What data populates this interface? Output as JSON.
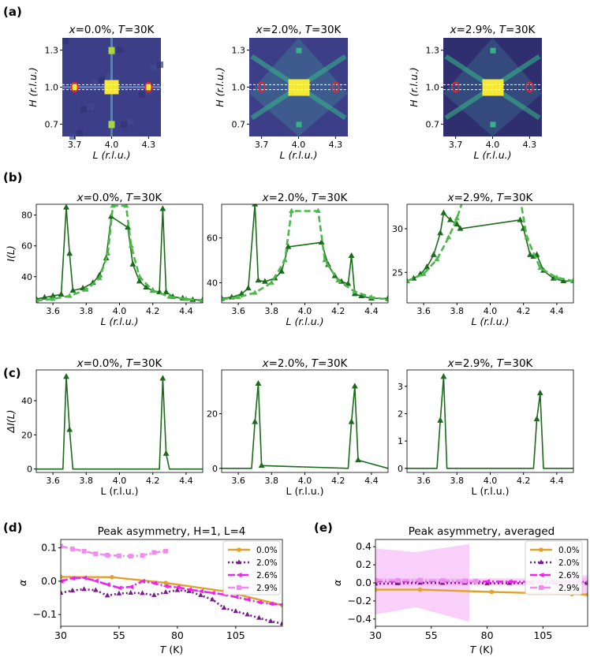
{
  "panel_labels": [
    "(a)",
    "(b)",
    "(c)",
    "(d)",
    "(e)"
  ],
  "chart_data": [
    {
      "id": "a",
      "type": "heatmap",
      "titles": [
        "x=0.0%, T=30K",
        "x=2.0%, T=30K",
        "x=2.9%, T=30K"
      ],
      "xlabel": "L (r.l.u.)",
      "ylabel": "H (r.l.u.)",
      "xticks": [
        "3.7",
        "4.0",
        "4.3"
      ],
      "yticks": [
        "1.3",
        "1.0",
        "0.7"
      ],
      "xlim": [
        3.6,
        4.4
      ],
      "ylim": [
        0.6,
        1.4
      ],
      "colors": {
        "bg": "#3c3f88",
        "bg_dark": "#2f2e6e",
        "hot": "#f5e836",
        "mid": "#36b18a",
        "marker": "#ff2020"
      }
    },
    {
      "id": "b",
      "type": "line",
      "titles": [
        "x=0.0%, T=30K",
        "x=2.0%, T=30K",
        "x=2.9%, T=30K"
      ],
      "xlabel": "L (r.l.u.)",
      "ylabel": "I(L)",
      "xticks": [
        "3.6",
        "3.8",
        "4.0",
        "4.2",
        "4.4"
      ],
      "yticks": [
        [
          "40",
          "60",
          "80"
        ],
        [
          "40",
          "60"
        ],
        [
          "25",
          "30"
        ]
      ],
      "ylim": [
        [
          23,
          87
        ],
        [
          31,
          75
        ],
        [
          21.5,
          32.8
        ]
      ],
      "xlim": [
        3.5,
        4.5
      ],
      "series": [
        {
          "name": "data",
          "color": "#1a6b1a",
          "x": [
            [
              3.5,
              3.55,
              3.6,
              3.65,
              3.68,
              3.7,
              3.72,
              3.78,
              3.84,
              3.88,
              3.92,
              3.95,
              4.05,
              4.08,
              4.12,
              4.16,
              4.2,
              4.24,
              4.26,
              4.28,
              4.32,
              4.38,
              4.44,
              4.5
            ],
            [
              3.5,
              3.56,
              3.62,
              3.66,
              3.7,
              3.72,
              3.76,
              3.82,
              3.86,
              3.9,
              4.1,
              4.14,
              4.18,
              4.22,
              4.26,
              4.28,
              4.3,
              4.34,
              4.4,
              4.5
            ],
            [
              3.5,
              3.54,
              3.58,
              3.62,
              3.66,
              3.7,
              3.72,
              3.76,
              3.8,
              3.82,
              4.18,
              4.2,
              4.24,
              4.26,
              4.28,
              4.32,
              4.38,
              4.44,
              4.5
            ]
          ],
          "y": [
            [
              25.5,
              26.5,
              27.5,
              28.5,
              85,
              55,
              31,
              32.5,
              36,
              41,
              52,
              79,
              72,
              48,
              37,
              33,
              31,
              30,
              84,
              30,
              27,
              26,
              25,
              25
            ],
            [
              33,
              33.5,
              35,
              37.5,
              75,
              41,
              40.5,
              42,
              45,
              56,
              58,
              48,
              43,
              40.5,
              39.5,
              52,
              35,
              34,
              33,
              33
            ],
            [
              24,
              24.3,
              24.8,
              25.6,
              27,
              29.5,
              31.8,
              31,
              30.5,
              30,
              31,
              30,
              27,
              26.8,
              27,
              25.2,
              24.3,
              24,
              24
            ]
          ]
        },
        {
          "name": "fit",
          "color": "#4cb84c",
          "dashed": true,
          "x": [
            [
              3.5,
              3.6,
              3.7,
              3.8,
              3.88,
              3.93,
              3.96,
              4.04,
              4.07,
              4.12,
              4.2,
              4.3,
              4.4,
              4.5
            ],
            [
              3.5,
              3.6,
              3.7,
              3.8,
              3.88,
              3.92,
              4.08,
              4.12,
              4.2,
              4.3,
              4.4,
              4.5
            ],
            [
              3.5,
              3.6,
              3.68,
              3.75,
              3.8,
              3.84,
              4.18,
              4.22,
              4.3,
              4.4,
              4.5
            ]
          ],
          "y": [
            [
              24.5,
              25.5,
              27.5,
              31.5,
              39,
              55,
              86,
              86,
              60,
              40,
              31,
              27,
              25.5,
              24.5
            ],
            [
              32.5,
              33.5,
              35.5,
              40,
              50,
              72,
              72,
              50,
              41,
              36,
              33.5,
              32.5
            ],
            [
              24,
              24.8,
              26.5,
              29,
              31.2,
              33.5,
              33.5,
              29,
              25.5,
              24.4,
              24
            ]
          ]
        }
      ]
    },
    {
      "id": "c",
      "type": "line",
      "titles": [
        "x=0.0%, T=30K",
        "x=2.0%, T=30K",
        "x=2.9%, T=30K"
      ],
      "xlabel": "L (r.l.u.)",
      "ylabel": "ΔI(L)",
      "xticks": [
        "3.6",
        "3.8",
        "4.0",
        "4.2",
        "4.4"
      ],
      "yticks": [
        [
          "0",
          "20",
          "40"
        ],
        [
          "0",
          "20"
        ],
        [
          "0",
          "1",
          "2",
          "3"
        ]
      ],
      "ylim": [
        [
          -2,
          58
        ],
        [
          -1.5,
          36
        ],
        [
          -0.15,
          3.6
        ]
      ],
      "xlim": [
        3.5,
        4.5
      ],
      "series": [
        {
          "name": "diff",
          "color": "#1a6b1a",
          "x": [
            [
              3.5,
              3.66,
              3.68,
              3.7,
              3.72,
              4.24,
              4.26,
              4.28,
              4.3,
              4.5
            ],
            [
              3.5,
              3.68,
              3.7,
              3.72,
              3.74,
              4.26,
              4.28,
              4.3,
              4.32,
              4.5
            ],
            [
              3.5,
              3.68,
              3.7,
              3.72,
              3.74,
              4.26,
              4.28,
              4.3,
              4.32,
              4.5
            ]
          ],
          "y": [
            [
              0,
              0,
              54,
              23,
              0,
              0,
              53,
              9,
              0,
              0
            ],
            [
              0,
              0,
              17,
              31,
              1,
              0,
              17,
              30,
              3,
              0
            ],
            [
              0,
              0,
              1.75,
              3.35,
              0,
              0,
              1.8,
              2.75,
              0,
              0
            ]
          ],
          "marked": [
            [
              2,
              3,
              6,
              7
            ],
            [
              2,
              3,
              4,
              6,
              7,
              8
            ],
            [
              2,
              3,
              6,
              7
            ]
          ]
        }
      ]
    },
    {
      "id": "d",
      "type": "line",
      "title": "Peak asymmetry, H=1, L=4",
      "xlabel": "T (K)",
      "ylabel": "α",
      "xticks": [
        "30",
        "55",
        "80",
        "105"
      ],
      "yticks": [
        "0.1",
        "0.0",
        "−0.1"
      ],
      "xlim": [
        30,
        125
      ],
      "ylim": [
        -0.135,
        0.125
      ],
      "series": [
        {
          "name": "0.0%",
          "color": "#e1a22c",
          "style": "solid",
          "x": [
            30,
            52,
            75,
            100,
            125
          ],
          "y": [
            0.013,
            0.012,
            -0.005,
            -0.03,
            -0.072
          ]
        },
        {
          "name": "2.0%",
          "color": "#7a1c8c",
          "style": "dotted",
          "x": [
            30,
            35,
            40,
            45,
            50,
            55,
            60,
            65,
            70,
            75,
            80,
            85,
            90,
            95,
            100,
            105,
            110,
            115,
            120,
            125
          ],
          "y": [
            -0.035,
            -0.028,
            -0.024,
            -0.027,
            -0.043,
            -0.037,
            -0.035,
            -0.036,
            -0.042,
            -0.033,
            -0.027,
            -0.03,
            -0.042,
            -0.055,
            -0.08,
            -0.09,
            -0.1,
            -0.11,
            -0.12,
            -0.127
          ]
        },
        {
          "name": "2.6%",
          "color": "#ee22ee",
          "style": "dashdot",
          "x": [
            30,
            35,
            40,
            45,
            50,
            55,
            60,
            65,
            70,
            75,
            80,
            85,
            90,
            95,
            100,
            105,
            110,
            115,
            120,
            125
          ],
          "y": [
            0.0,
            0.009,
            0.01,
            0.001,
            -0.01,
            -0.02,
            -0.017,
            0.0,
            -0.006,
            -0.015,
            -0.018,
            -0.025,
            -0.03,
            -0.035,
            -0.04,
            -0.047,
            -0.055,
            -0.063,
            -0.068,
            -0.07
          ]
        },
        {
          "name": "2.9%",
          "color": "#f08cf0",
          "style": "dashdot",
          "x": [
            30,
            35,
            40,
            45,
            50,
            55,
            60,
            65,
            70,
            75
          ],
          "y": [
            0.105,
            0.097,
            0.09,
            0.082,
            0.078,
            0.076,
            0.075,
            0.077,
            0.086,
            0.09
          ]
        }
      ]
    },
    {
      "id": "e",
      "type": "line",
      "title": "Peak asymmetry, averaged",
      "xlabel": "T (K)",
      "ylabel": "α",
      "xticks": [
        "30",
        "55",
        "80",
        "105"
      ],
      "yticks": [
        "0.4",
        "0.2",
        "0.0",
        "−0.2",
        "−0.4"
      ],
      "xlim": [
        30,
        125
      ],
      "ylim": [
        -0.48,
        0.48
      ],
      "band": {
        "x": [
          30,
          48,
          72
        ],
        "lower": [
          -0.35,
          -0.27,
          -0.43
        ],
        "upper": [
          0.38,
          0.34,
          0.43
        ],
        "color": "#f8c8f8"
      },
      "series": [
        {
          "name": "0.0%",
          "color": "#e1a22c",
          "style": "solid",
          "x": [
            30,
            50,
            82,
            118,
            125
          ],
          "y": [
            -0.075,
            -0.075,
            -0.1,
            -0.125,
            -0.13
          ]
        },
        {
          "name": "2.0%",
          "color": "#7a1c8c",
          "style": "dotted",
          "x": [
            30,
            40,
            50,
            60,
            70,
            80,
            90,
            100,
            110,
            125
          ],
          "y": [
            -0.01,
            -0.005,
            0.0,
            -0.002,
            0.0,
            -0.005,
            -0.003,
            -0.004,
            0.0,
            -0.002
          ]
        },
        {
          "name": "2.6%",
          "color": "#ee22ee",
          "style": "dashdot",
          "x": [
            30,
            40,
            50,
            60,
            70,
            80,
            90,
            100,
            110,
            125
          ],
          "y": [
            0.02,
            0.015,
            0.018,
            0.02,
            0.017,
            0.015,
            0.013,
            0.012,
            0.014,
            0.01
          ]
        },
        {
          "name": "2.9%",
          "color": "#f08cf0",
          "style": "dashdot",
          "x": [
            30,
            40,
            50,
            60,
            70,
            75
          ],
          "y": [
            0.03,
            0.028,
            0.03,
            0.025,
            0.02,
            0.018
          ]
        }
      ]
    }
  ]
}
